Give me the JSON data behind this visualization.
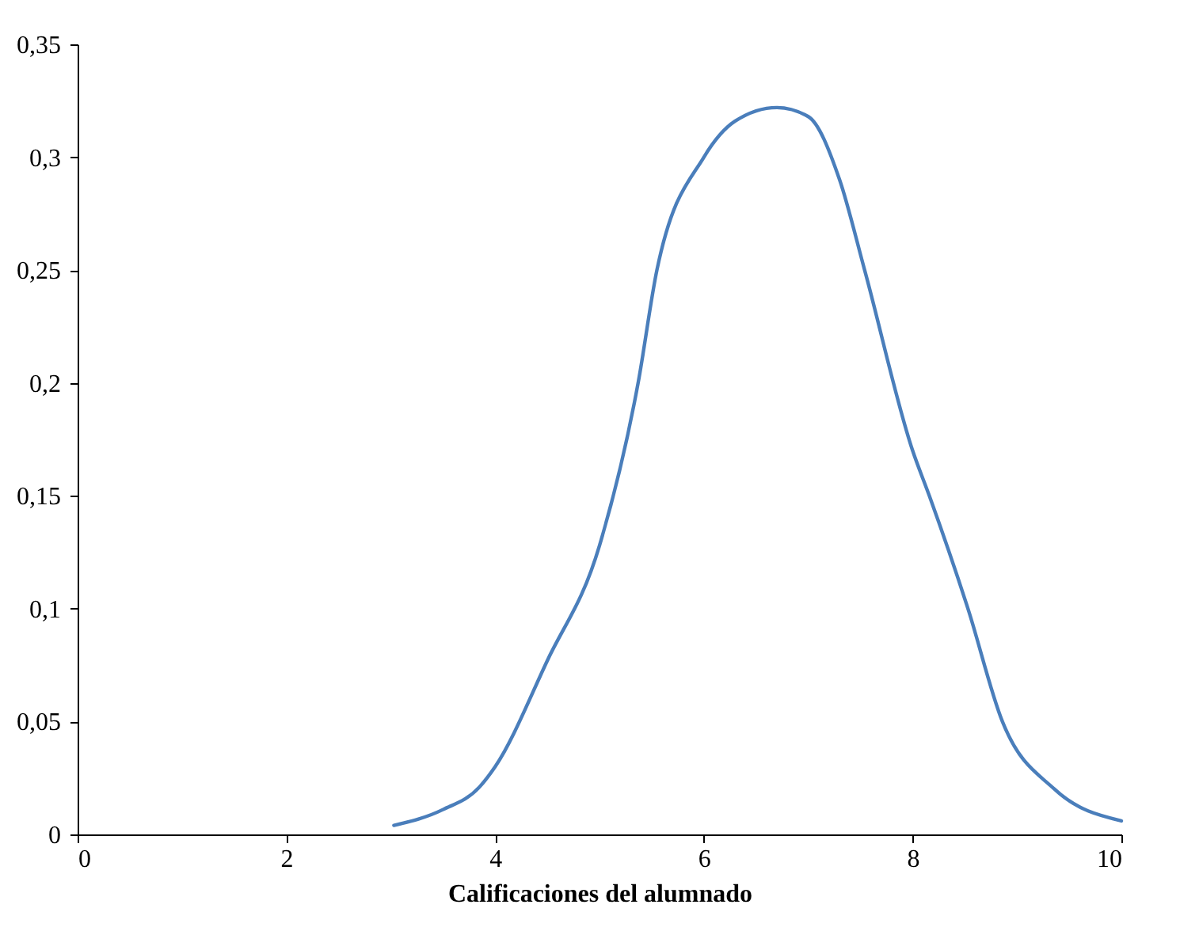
{
  "chart_data": {
    "type": "line",
    "xlabel": "Calificaciones del alumnado",
    "x": [
      3.03,
      3.5,
      3.85,
      4.0,
      4.5,
      5.0,
      5.37,
      5.55,
      6.0,
      6.3,
      6.7,
      7.0,
      7.3,
      7.54,
      8.0,
      8.16,
      8.53,
      8.86,
      9.36,
      10.0
    ],
    "series": [
      {
        "color": "#4a7ebb",
        "values": [
          0.004,
          0.011,
          0.021,
          0.03,
          0.077,
          0.128,
          0.2,
          0.25,
          0.3,
          0.316,
          0.322,
          0.318,
          0.29,
          0.25,
          0.17,
          0.15,
          0.1,
          0.05,
          0.02,
          0.006
        ]
      }
    ],
    "xlim": [
      0,
      10
    ],
    "xticks": [
      0,
      2,
      4,
      6,
      8,
      10
    ],
    "ylim": [
      0,
      0.35
    ],
    "yticks": [
      0,
      {
        "value": 0.05,
        "label": "0,05"
      },
      {
        "value": 0.1,
        "label": "0,1"
      },
      {
        "value": 0.15,
        "label": "0,15"
      },
      {
        "value": 0.2,
        "label": "0,2"
      },
      {
        "value": 0.25,
        "label": "0,25"
      },
      {
        "value": 0.3,
        "label": "0,3"
      },
      {
        "value": 0.35,
        "label": "0,35"
      }
    ],
    "grid": false,
    "marker": "none",
    "line_style": "solid"
  }
}
